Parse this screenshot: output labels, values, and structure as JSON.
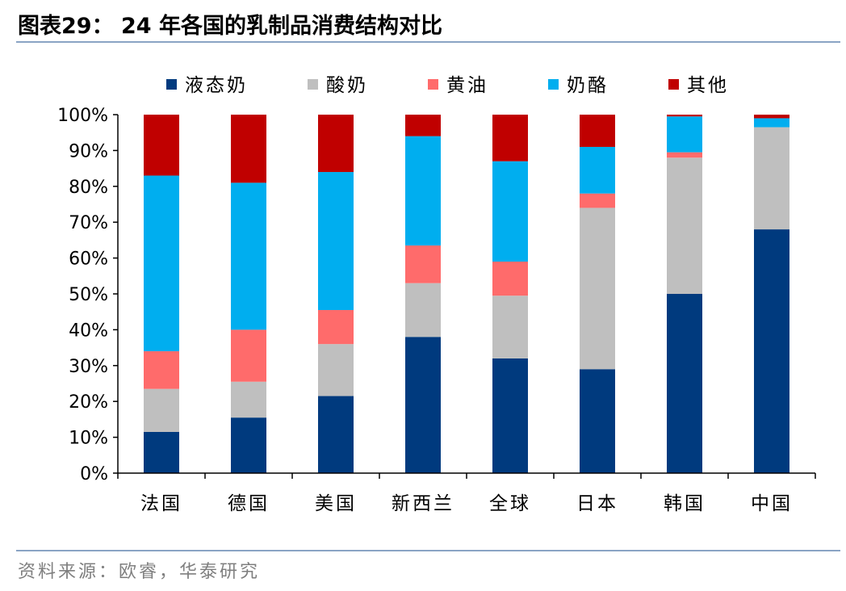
{
  "figure": {
    "title": "图表29： 24 年各国的乳制品消费结构对比",
    "source": "资料来源：欧睿，华泰研究"
  },
  "chart_data": {
    "type": "bar",
    "stacked": true,
    "percent": true,
    "title": "24 年各国的乳制品消费结构对比",
    "xlabel": "",
    "ylabel": "",
    "ylim": [
      0,
      100
    ],
    "yticks": [
      "0%",
      "10%",
      "20%",
      "30%",
      "40%",
      "50%",
      "60%",
      "70%",
      "80%",
      "90%",
      "100%"
    ],
    "legend_position": "top",
    "categories": [
      "法国",
      "德国",
      "美国",
      "新西兰",
      "全球",
      "日本",
      "韩国",
      "中国"
    ],
    "series": [
      {
        "name": "液态奶",
        "color": "#003a7e",
        "values": [
          11.5,
          15.5,
          21.5,
          38.0,
          32.0,
          29.0,
          50.0,
          68.0
        ]
      },
      {
        "name": "酸奶",
        "color": "#bfbfbf",
        "values": [
          12.0,
          10.0,
          14.5,
          15.0,
          17.5,
          45.0,
          38.0,
          28.5
        ]
      },
      {
        "name": "黄油",
        "color": "#ff6b6b",
        "values": [
          10.5,
          14.5,
          9.5,
          10.5,
          9.5,
          4.0,
          1.5,
          0.0
        ]
      },
      {
        "name": "奶酪",
        "color": "#00aeef",
        "values": [
          49.0,
          41.0,
          38.5,
          30.5,
          28.0,
          13.0,
          10.0,
          2.5
        ]
      },
      {
        "name": "其他",
        "color": "#c00000",
        "values": [
          17.0,
          19.0,
          16.0,
          6.0,
          13.0,
          9.0,
          0.5,
          1.0
        ]
      }
    ]
  }
}
